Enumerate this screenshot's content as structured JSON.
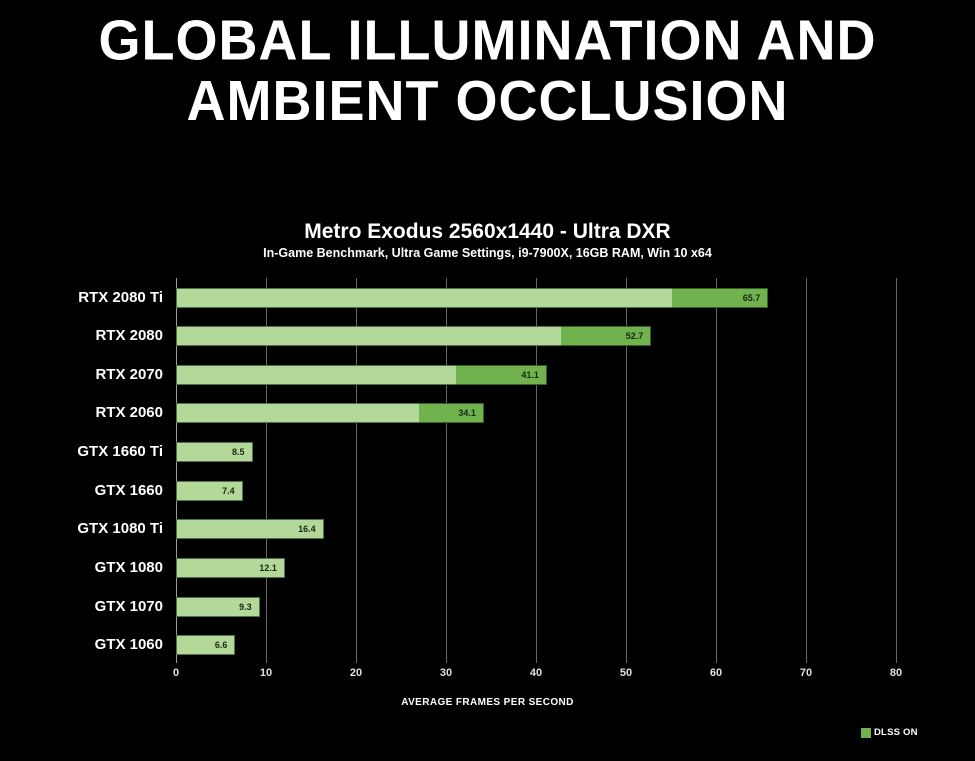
{
  "page": {
    "title_line1": "GLOBAL ILLUMINATION AND",
    "title_line2": "AMBIENT OCCLUSION"
  },
  "chart": {
    "title": "Metro Exodus 2560x1440 - Ultra DXR",
    "subtitle": "In-Game Benchmark, Ultra Game Settings, i9-7900X, 16GB RAM, Win 10 x64",
    "xlabel": "AVERAGE FRAMES PER SECOND",
    "legend_label": "DLSS ON"
  },
  "colors": {
    "background": "#000000",
    "bar_base_green": "#b2d89a",
    "bar_dlss_green": "#6fb24e",
    "gridline": "#686868",
    "text_white": "#ffffff",
    "value_text": "#1b290f"
  },
  "chart_data": {
    "type": "bar",
    "orientation": "horizontal",
    "title": "Metro Exodus 2560x1440 - Ultra DXR",
    "subtitle": "In-Game Benchmark, Ultra Game Settings, i9-7900X, 16GB RAM, Win 10 x64",
    "xlabel": "AVERAGE FRAMES PER SECOND",
    "xlim": [
      0,
      80
    ],
    "xticks": [
      0,
      10,
      20,
      30,
      40,
      50,
      60,
      70,
      80
    ],
    "grid": true,
    "legend_position": "bottom-right",
    "legend": [
      {
        "label": "DLSS ON",
        "color": "#6fb24e"
      }
    ],
    "categories": [
      "RTX 2080 Ti",
      "RTX 2080",
      "RTX 2070",
      "RTX 2060",
      "GTX 1660 Ti",
      "GTX 1660",
      "GTX 1080 Ti",
      "GTX 1080",
      "GTX 1070",
      "GTX 1060"
    ],
    "series": [
      {
        "name": "Base (DLSS off, unlabeled)",
        "color": "#b2d89a",
        "values": [
          55.0,
          42.7,
          31.0,
          26.9,
          8.5,
          7.4,
          16.4,
          12.1,
          9.3,
          6.6
        ]
      },
      {
        "name": "DLSS ON total (labeled)",
        "color": "#6fb24e",
        "values": [
          65.7,
          52.7,
          41.1,
          34.1,
          null,
          null,
          null,
          null,
          null,
          null
        ]
      }
    ],
    "value_labels": [
      "65.7",
      "52.7",
      "41.1",
      "34.1",
      "8.5",
      "7.4",
      "16.4",
      "12.1",
      "9.3",
      "6.6"
    ]
  }
}
